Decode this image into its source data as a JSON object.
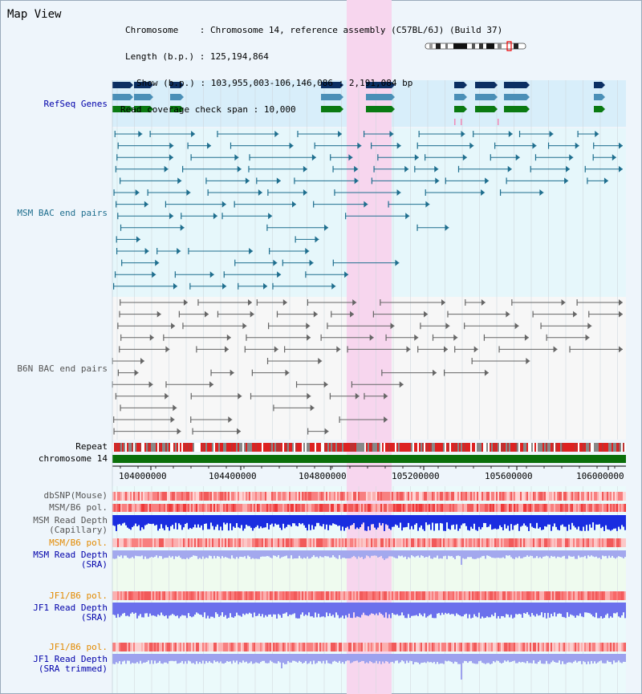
{
  "page": {
    "title": "Map View"
  },
  "info": {
    "chromosome_label": "Chromosome",
    "chromosome_value": "Chromosome 14, reference assembly (C57BL/6J) (Build 37)",
    "length_label": "Length (b.p.)",
    "length_value": "125,194,864",
    "show_label": "Show (b.p.)",
    "show_value": "103,955,003-106,146,086 : 2,191,084 bp",
    "coverage_label": "Read coverage check span",
    "coverage_value": "10,000"
  },
  "tracks": {
    "refseq": "RefSeq Genes",
    "msm_bac": "MSM BAC end pairs",
    "b6n_bac": "B6N BAC end pairs",
    "repeat": "Repeat",
    "chromosome": "chromosome 14",
    "dbsnp": "dbSNP(Mouse)",
    "msm_b6_pol": "MSM/B6 pol.",
    "msm_depth_cap_1": "MSM Read Depth",
    "msm_depth_cap_2": "(Capillary)",
    "msm_b6_pol_2": "MSM/B6 pol.",
    "msm_depth_sra_1": "MSM Read Depth",
    "msm_depth_sra_2": "(SRA)",
    "jf1_b6_pol": "JF1/B6 pol.",
    "jf1_depth_sra_1": "JF1 Read Depth",
    "jf1_depth_sra_2": "(SRA)",
    "jf1_b6_pol_2": "JF1/B6 pol.",
    "jf1_depth_trim_1": "JF1 Read Depth",
    "jf1_depth_trim_2": "(SRA trimmed)"
  },
  "axis": {
    "ticks": [
      "104000000",
      "104400000",
      "104800000",
      "105200000",
      "105600000",
      "106000000"
    ]
  },
  "colors": {
    "refseq_dark": "#0b2f63",
    "refseq_mid": "#4a8fb7",
    "refseq_green": "#0a7a12",
    "msm_bac": "#1e6e8e",
    "b6n_bac": "#666666",
    "highlight": "#f7d6ee",
    "chromosome_bar": "#0a6f0a",
    "label_blue": "#0000aa",
    "label_teal": "#1e6e8e",
    "label_gray": "#555555",
    "label_orange": "#e38a00"
  }
}
